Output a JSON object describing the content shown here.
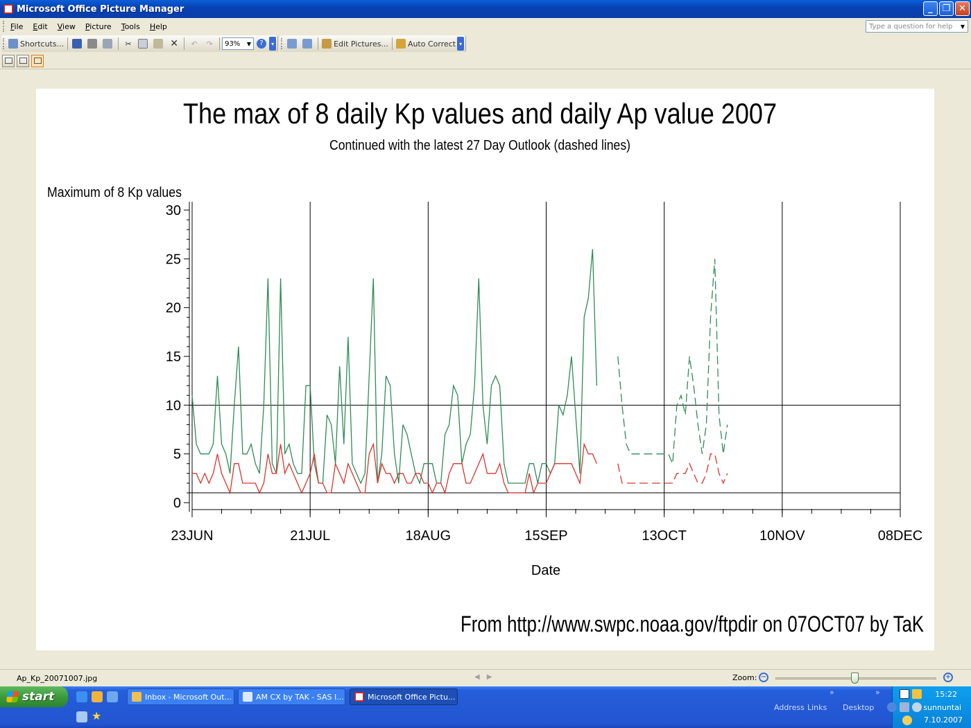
{
  "window": {
    "title": "Microsoft Office Picture Manager"
  },
  "menu": {
    "items": [
      "File",
      "Edit",
      "View",
      "Picture",
      "Tools",
      "Help"
    ],
    "help_placeholder": "Type a question for help"
  },
  "toolbar": {
    "shortcuts_label": "Shortcuts...",
    "zoom_value": "93%",
    "edit_pictures_label": "Edit Pictures...",
    "auto_correct_label": "Auto Correct"
  },
  "picture": {
    "title": "The max of 8 daily Kp values and daily Ap value 2007",
    "subtitle": "Continued with the latest 27 Day Outlook (dashed lines)",
    "ylabel": "Maximum of 8 Kp values",
    "xlabel": "Date",
    "footer": "From http://www.swpc.noaa.gov/ftpdir on 07OCT07 by TaK"
  },
  "chart_data": {
    "type": "line",
    "title": "The max of 8 daily Kp values and daily Ap value 2007",
    "subtitle": "Continued with the latest 27 Day Outlook (dashed lines)",
    "ylabel": "Maximum of 8 Kp values",
    "xlabel": "Date",
    "ylim": [
      0,
      30
    ],
    "yticks": [
      0,
      5,
      10,
      15,
      20,
      25,
      30
    ],
    "x_start": "23JUN",
    "xlim_days": [
      0,
      168
    ],
    "xticks": [
      {
        "day": 0,
        "label": "23JUN"
      },
      {
        "day": 28,
        "label": "21JUL"
      },
      {
        "day": 56,
        "label": "18AUG"
      },
      {
        "day": 84,
        "label": "15SEP"
      },
      {
        "day": 112,
        "label": "13OCT"
      },
      {
        "day": 140,
        "label": "10NOV"
      },
      {
        "day": 168,
        "label": "08DEC"
      }
    ],
    "reference_lines": [
      1,
      10
    ],
    "grid_x": true,
    "colors": {
      "green": "#2e8b57",
      "red": "#d9342b",
      "axis": "#000000"
    },
    "series": [
      {
        "style": "solid",
        "color": "#2e8b57",
        "start_day": 0,
        "values": [
          11,
          6,
          5,
          5,
          5,
          6,
          13,
          6,
          5,
          3,
          10,
          16,
          5,
          5,
          6,
          4,
          3,
          10,
          23,
          4,
          3,
          23,
          5,
          6,
          4,
          3,
          3,
          12,
          12,
          4,
          2,
          2,
          9,
          8,
          4,
          14,
          6,
          17,
          4,
          3,
          2,
          3,
          13,
          23,
          2,
          5,
          13,
          12,
          5,
          2,
          8,
          7,
          5,
          3,
          2,
          4,
          4,
          4,
          2,
          2,
          7,
          8,
          12,
          11,
          4,
          6,
          7,
          12,
          23,
          10,
          6,
          12,
          13,
          12,
          4,
          2,
          2,
          2,
          2,
          2,
          4,
          4,
          2,
          4,
          4,
          3,
          4,
          10,
          9,
          11,
          15,
          9,
          3,
          19,
          21,
          26,
          12
        ]
      },
      {
        "style": "solid",
        "color": "#d9342b",
        "start_day": 0,
        "values": [
          3,
          3,
          2,
          3,
          2,
          3,
          5,
          3,
          2,
          1,
          4,
          4,
          2,
          2,
          2,
          2,
          1,
          2,
          5,
          3,
          3,
          6,
          3,
          4,
          3,
          2,
          1,
          2,
          3,
          5,
          2,
          2,
          1,
          1,
          4,
          3,
          2,
          4,
          3,
          2,
          1,
          1,
          5,
          6,
          2,
          4,
          3,
          3,
          2,
          3,
          3,
          2,
          2,
          3,
          3,
          2,
          2,
          1,
          2,
          2,
          1,
          3,
          4,
          4,
          4,
          2,
          2,
          3,
          4,
          5,
          3,
          3,
          3,
          4,
          2,
          1,
          1,
          1,
          1,
          1,
          3,
          1,
          2,
          2,
          2,
          3,
          4,
          4,
          4,
          4,
          4,
          3,
          2,
          6,
          5,
          5,
          4
        ]
      },
      {
        "style": "dashed",
        "color": "#2e8b57",
        "start_day": 101,
        "values": [
          15,
          10,
          6,
          5,
          5,
          5,
          5,
          5,
          5,
          5,
          5,
          5,
          5,
          4,
          10,
          11,
          9,
          15,
          12,
          8,
          5,
          8,
          19,
          25,
          9,
          5,
          8
        ]
      },
      {
        "style": "dashed",
        "color": "#d9342b",
        "start_day": 101,
        "values": [
          4,
          2,
          2,
          2,
          2,
          2,
          2,
          2,
          2,
          2,
          2,
          2,
          2,
          2,
          3,
          3,
          3,
          4,
          3,
          2,
          2,
          3,
          5,
          5,
          3,
          2,
          3
        ]
      }
    ]
  },
  "status": {
    "filename": "Ap_Kp_20071007.jpg",
    "zoom_label": "Zoom:",
    "zoom_fraction": 0.49
  },
  "taskbar": {
    "start_label": "start",
    "tasks": [
      "Inbox - Microsoft Out...",
      "AM CX by TAK - SAS I...",
      "Microsoft Office Pictu..."
    ],
    "address_label": "Address",
    "links_label": "Links",
    "desktop_label": "Desktop",
    "clock": "15:22",
    "day": "sunnuntai",
    "date": "7.10.2007"
  }
}
